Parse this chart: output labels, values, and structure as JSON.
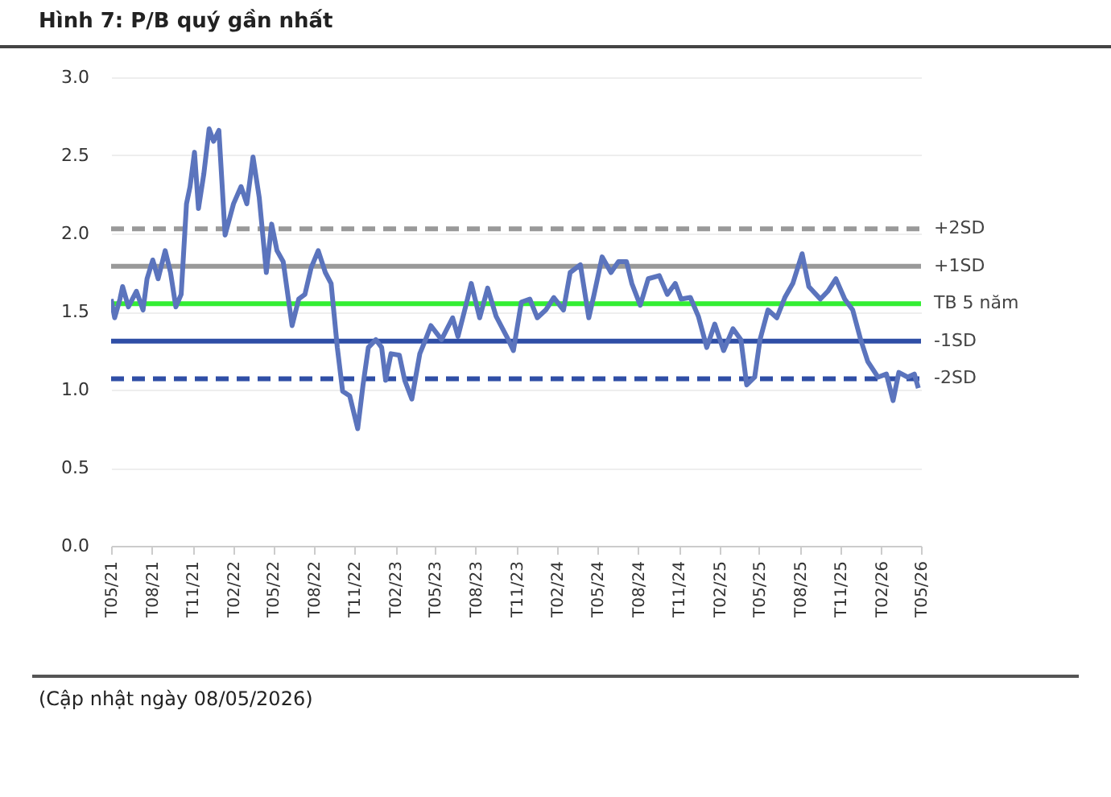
{
  "chart_data": {
    "type": "line",
    "title": "Hình 7: P/B quý gần nhất",
    "annotations": [
      "(Cập nhật ngày 08/05/2026)"
    ],
    "x": [
      "2021-05-01",
      "2021-05-09",
      "2021-05-21",
      "2021-05-27",
      "2021-06-09",
      "2021-06-27",
      "2021-07-12",
      "2021-07-21",
      "2021-08-03",
      "2021-08-15",
      "2021-08-31",
      "2021-09-12",
      "2021-09-24",
      "2021-10-06",
      "2021-10-18",
      "2021-10-26",
      "2021-11-05",
      "2021-11-14",
      "2021-11-26",
      "2021-12-08",
      "2021-12-18",
      "2021-12-30",
      "2022-01-13",
      "2022-02-01",
      "2022-02-18",
      "2022-03-03",
      "2022-03-17",
      "2022-03-31",
      "2022-04-16",
      "2022-04-28",
      "2022-05-10",
      "2022-05-24",
      "2022-06-13",
      "2022-06-28",
      "2022-07-12",
      "2022-07-26",
      "2022-08-11",
      "2022-08-27",
      "2022-09-09",
      "2022-09-23",
      "2022-10-05",
      "2022-10-21",
      "2022-11-08",
      "2022-11-20",
      "2022-12-02",
      "2022-12-19",
      "2023-01-01",
      "2023-01-10",
      "2023-01-22",
      "2023-02-10",
      "2023-02-22",
      "2023-03-10",
      "2023-03-28",
      "2023-04-10",
      "2023-04-22",
      "2023-05-16",
      "2023-06-10",
      "2023-06-22",
      "2023-07-10",
      "2023-07-22",
      "2023-08-10",
      "2023-08-28",
      "2023-09-16",
      "2023-10-10",
      "2023-10-25",
      "2023-11-12",
      "2023-12-01",
      "2023-12-18",
      "2024-01-06",
      "2024-01-24",
      "2024-02-15",
      "2024-03-01",
      "2024-03-24",
      "2024-04-12",
      "2024-04-24",
      "2024-05-12",
      "2024-06-01",
      "2024-06-18",
      "2024-07-06",
      "2024-07-18",
      "2024-08-06",
      "2024-08-24",
      "2024-09-18",
      "2024-10-06",
      "2024-10-24",
      "2024-11-06",
      "2024-11-27",
      "2024-12-15",
      "2025-01-03",
      "2025-01-21",
      "2025-02-10",
      "2025-03-03",
      "2025-03-21",
      "2025-04-03",
      "2025-04-21",
      "2025-05-03",
      "2025-05-21",
      "2025-06-10",
      "2025-06-28",
      "2025-07-16",
      "2025-08-06",
      "2025-08-21",
      "2025-09-16",
      "2025-10-03",
      "2025-10-21",
      "2025-11-10",
      "2025-11-28",
      "2025-12-16",
      "2026-01-01",
      "2026-01-24",
      "2026-02-12",
      "2026-02-27",
      "2026-03-12",
      "2026-04-01",
      "2026-04-16",
      "2026-04-25"
    ],
    "series": [
      {
        "color": "#5b74bd",
        "values": [
          1.58,
          1.46,
          1.58,
          1.66,
          1.53,
          1.63,
          1.51,
          1.71,
          1.83,
          1.71,
          1.89,
          1.75,
          1.53,
          1.61,
          2.19,
          2.3,
          2.52,
          2.16,
          2.38,
          2.67,
          2.59,
          2.66,
          1.99,
          2.19,
          2.3,
          2.19,
          2.49,
          2.23,
          1.75,
          2.06,
          1.89,
          1.82,
          1.41,
          1.58,
          1.61,
          1.78,
          1.89,
          1.75,
          1.68,
          1.27,
          0.99,
          0.96,
          0.75,
          1.03,
          1.27,
          1.32,
          1.27,
          1.06,
          1.23,
          1.22,
          1.06,
          0.94,
          1.23,
          1.32,
          1.41,
          1.32,
          1.46,
          1.34,
          1.54,
          1.68,
          1.46,
          1.65,
          1.47,
          1.34,
          1.25,
          1.56,
          1.58,
          1.46,
          1.51,
          1.59,
          1.51,
          1.75,
          1.8,
          1.46,
          1.61,
          1.85,
          1.75,
          1.82,
          1.82,
          1.68,
          1.54,
          1.71,
          1.73,
          1.61,
          1.68,
          1.58,
          1.59,
          1.47,
          1.27,
          1.42,
          1.25,
          1.39,
          1.32,
          1.03,
          1.08,
          1.32,
          1.51,
          1.46,
          1.59,
          1.68,
          1.87,
          1.66,
          1.58,
          1.63,
          1.71,
          1.58,
          1.51,
          1.32,
          1.18,
          1.08,
          1.1,
          0.93,
          1.11,
          1.08,
          1.1,
          1.01
        ]
      }
    ],
    "xlim": [
      "2021-05-01",
      "2026-05-01"
    ],
    "xticks": [
      {
        "value": "2021-05-01",
        "label": "T05/21"
      },
      {
        "value": "2021-08-01",
        "label": "T08/21"
      },
      {
        "value": "2021-11-01",
        "label": "T11/21"
      },
      {
        "value": "2022-02-01",
        "label": "T02/22"
      },
      {
        "value": "2022-05-01",
        "label": "T05/22"
      },
      {
        "value": "2022-08-01",
        "label": "T08/22"
      },
      {
        "value": "2022-11-01",
        "label": "T11/22"
      },
      {
        "value": "2023-02-01",
        "label": "T02/23"
      },
      {
        "value": "2023-05-01",
        "label": "T05/23"
      },
      {
        "value": "2023-08-01",
        "label": "T08/23"
      },
      {
        "value": "2023-11-01",
        "label": "T11/23"
      },
      {
        "value": "2024-02-01",
        "label": "T02/24"
      },
      {
        "value": "2024-05-01",
        "label": "T05/24"
      },
      {
        "value": "2024-08-01",
        "label": "T08/24"
      },
      {
        "value": "2024-11-01",
        "label": "T11/24"
      },
      {
        "value": "2025-02-01",
        "label": "T02/25"
      },
      {
        "value": "2025-05-01",
        "label": "T05/25"
      },
      {
        "value": "2025-08-01",
        "label": "T08/25"
      },
      {
        "value": "2025-11-01",
        "label": "T11/25"
      },
      {
        "value": "2026-02-01",
        "label": "T02/26"
      },
      {
        "value": "2026-05-01",
        "label": "T05/26"
      }
    ],
    "ylim": [
      0,
      3
    ],
    "yticks": [
      {
        "value": 0,
        "label": "0.0"
      },
      {
        "value": 0.5,
        "label": "0.5"
      },
      {
        "value": 1,
        "label": "1.0"
      },
      {
        "value": 1.5,
        "label": "1.5"
      },
      {
        "value": 2,
        "label": "2.0"
      },
      {
        "value": 2.5,
        "label": "2.5"
      },
      {
        "value": 3,
        "label": "3.0"
      }
    ],
    "grid": "y",
    "ref_lines": [
      {
        "axis": "y",
        "value": 2.03,
        "label": "+2SD",
        "color": "#999999",
        "line_style": "dashed"
      },
      {
        "axis": "y",
        "value": 1.79,
        "label": "+1SD",
        "color": "#999999",
        "line_style": "solid"
      },
      {
        "axis": "y",
        "value": 1.55,
        "label": "TB 5 năm",
        "color": "#33ee33",
        "line_style": "solid"
      },
      {
        "axis": "y",
        "value": 1.31,
        "label": "-1SD",
        "color": "#2f4ea6",
        "line_style": "solid"
      },
      {
        "axis": "y",
        "value": 1.07,
        "label": "-2SD",
        "color": "#2f4ea6",
        "line_style": "dashed"
      }
    ]
  }
}
